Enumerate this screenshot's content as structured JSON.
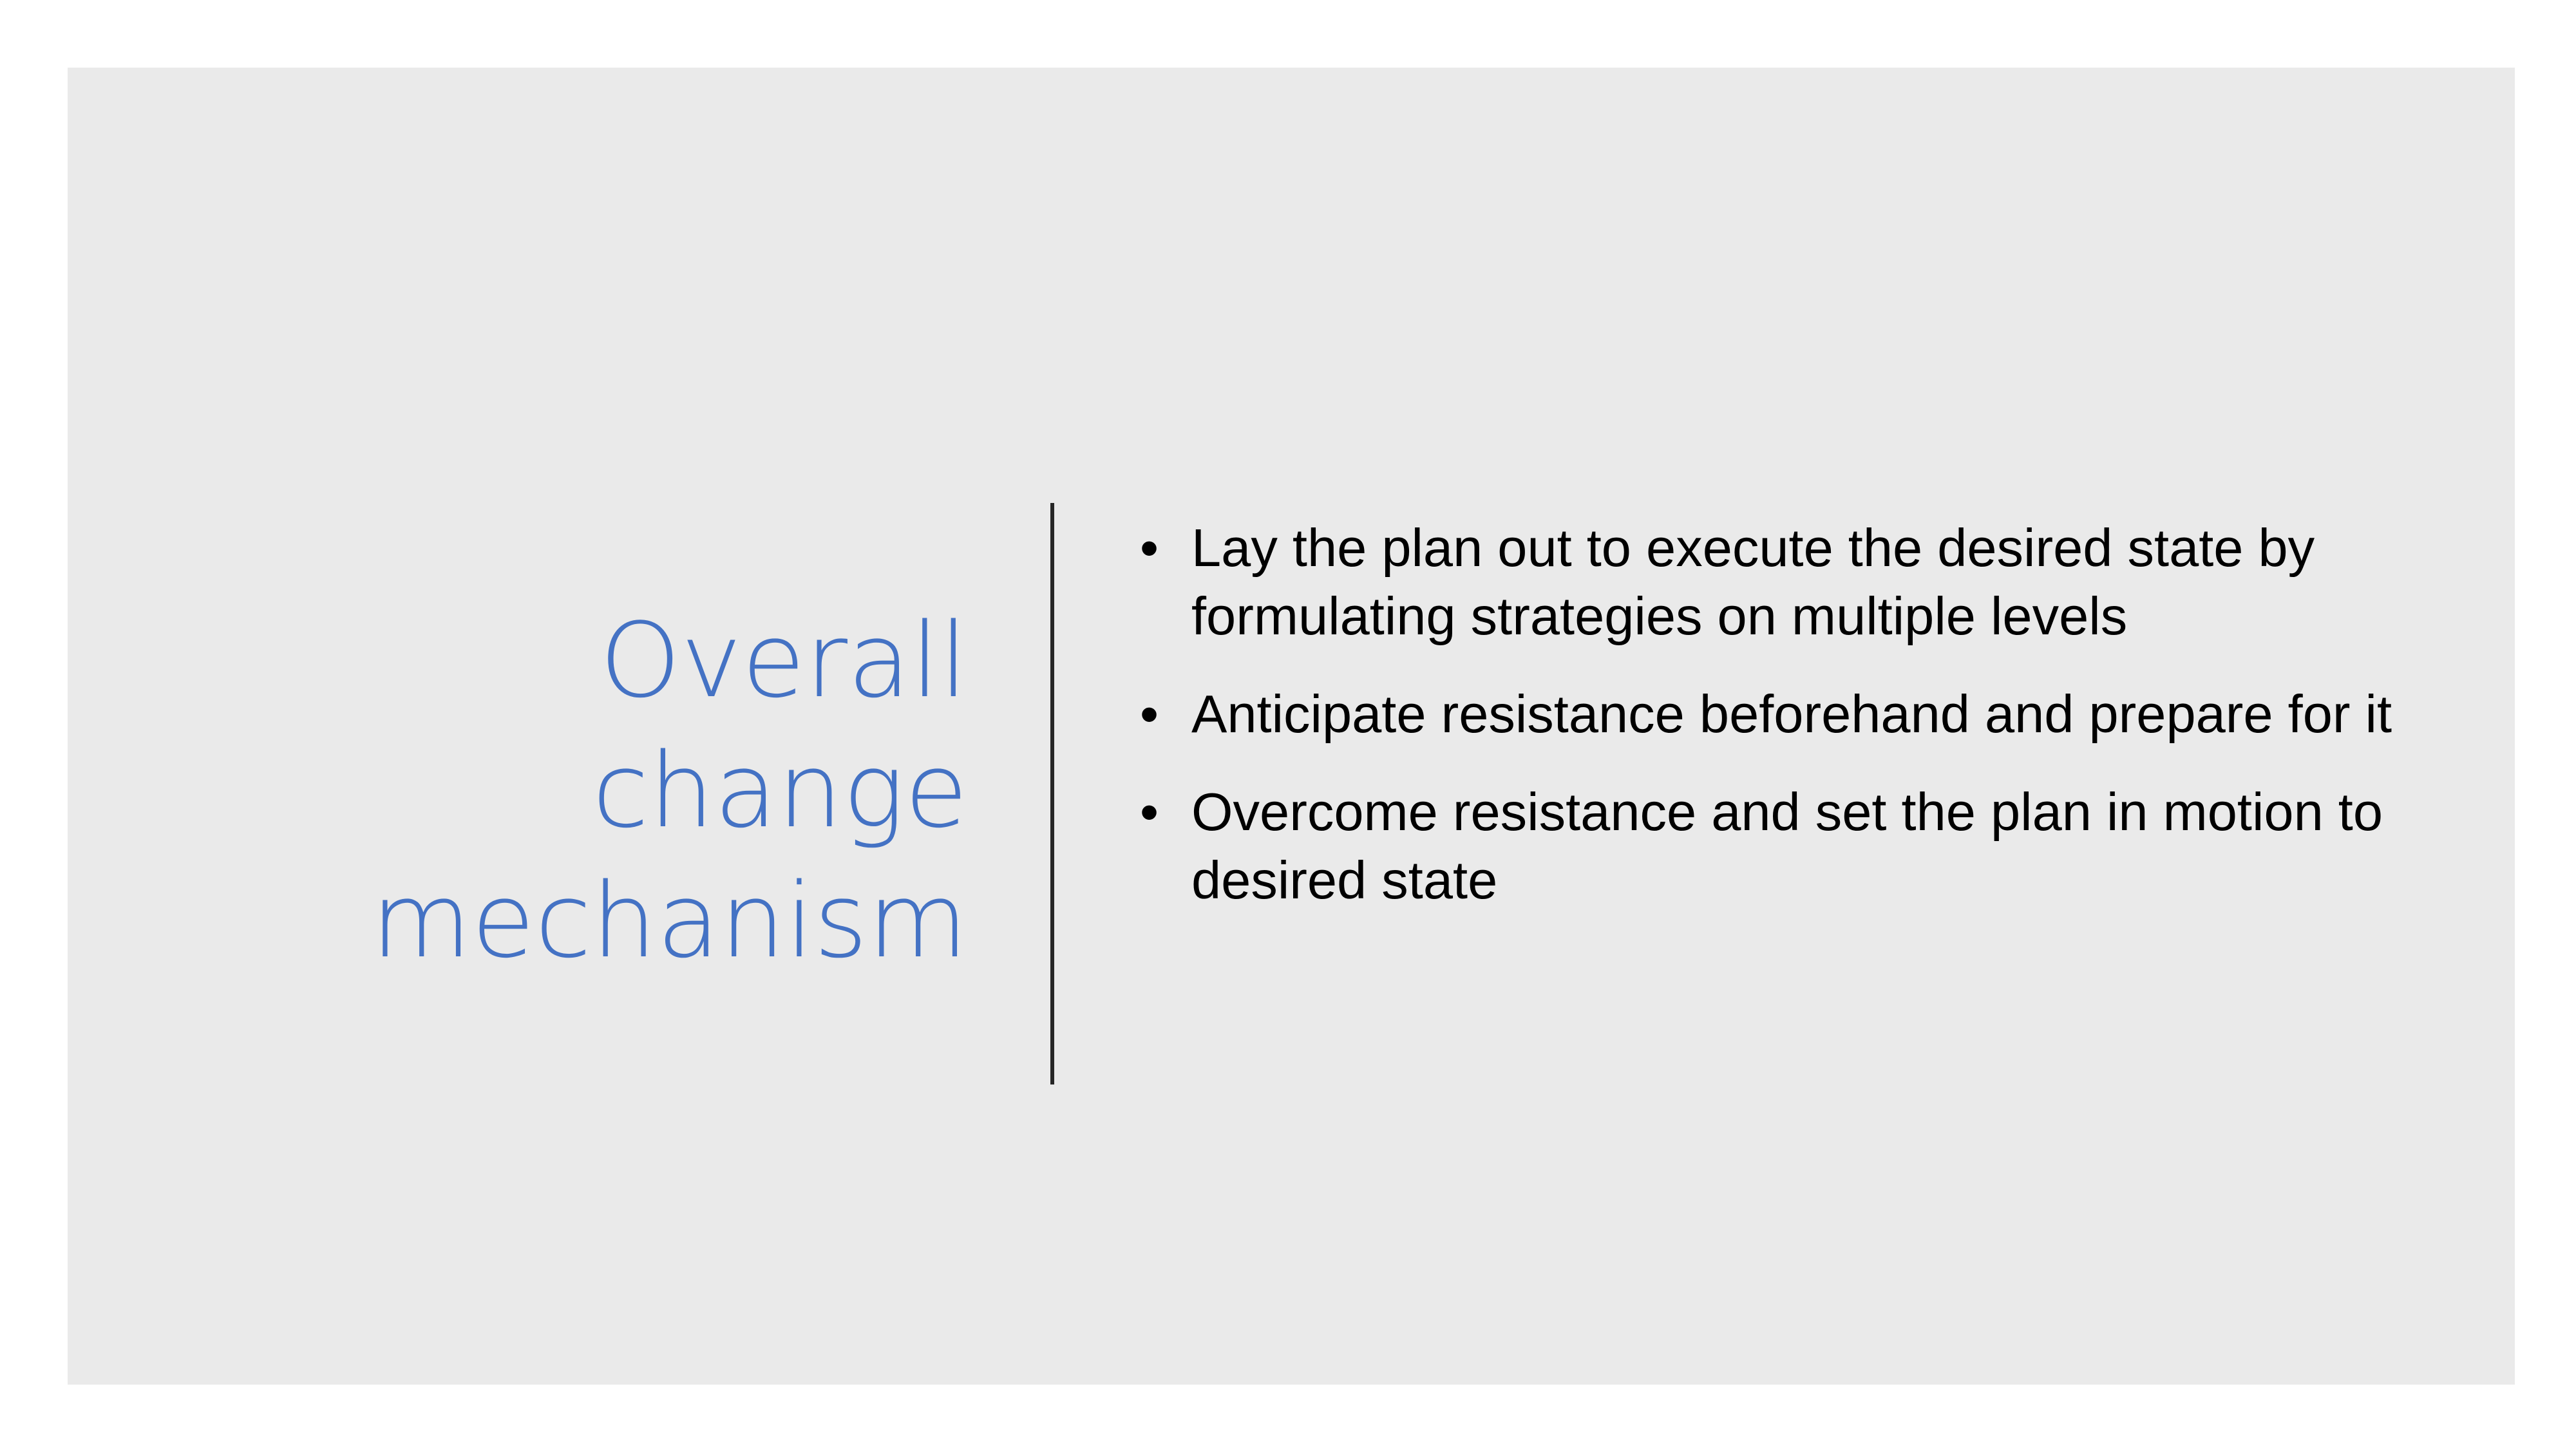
{
  "title": {
    "line1": "Overall",
    "line2": "change",
    "line3": "mechanism"
  },
  "bullets": [
    {
      "marker": "•",
      "text": "Lay the plan out to execute the desired state by formulating strategies on multiple levels"
    },
    {
      "marker": "•",
      "text": "Anticipate resistance beforehand and prepare for it"
    },
    {
      "marker": "•",
      "text": "Overcome resistance and set the plan in motion to desired state"
    }
  ],
  "colors": {
    "slide_background": "#eaeaea",
    "title": "#4472c4",
    "body_text": "#000000",
    "divider": "#262626"
  }
}
